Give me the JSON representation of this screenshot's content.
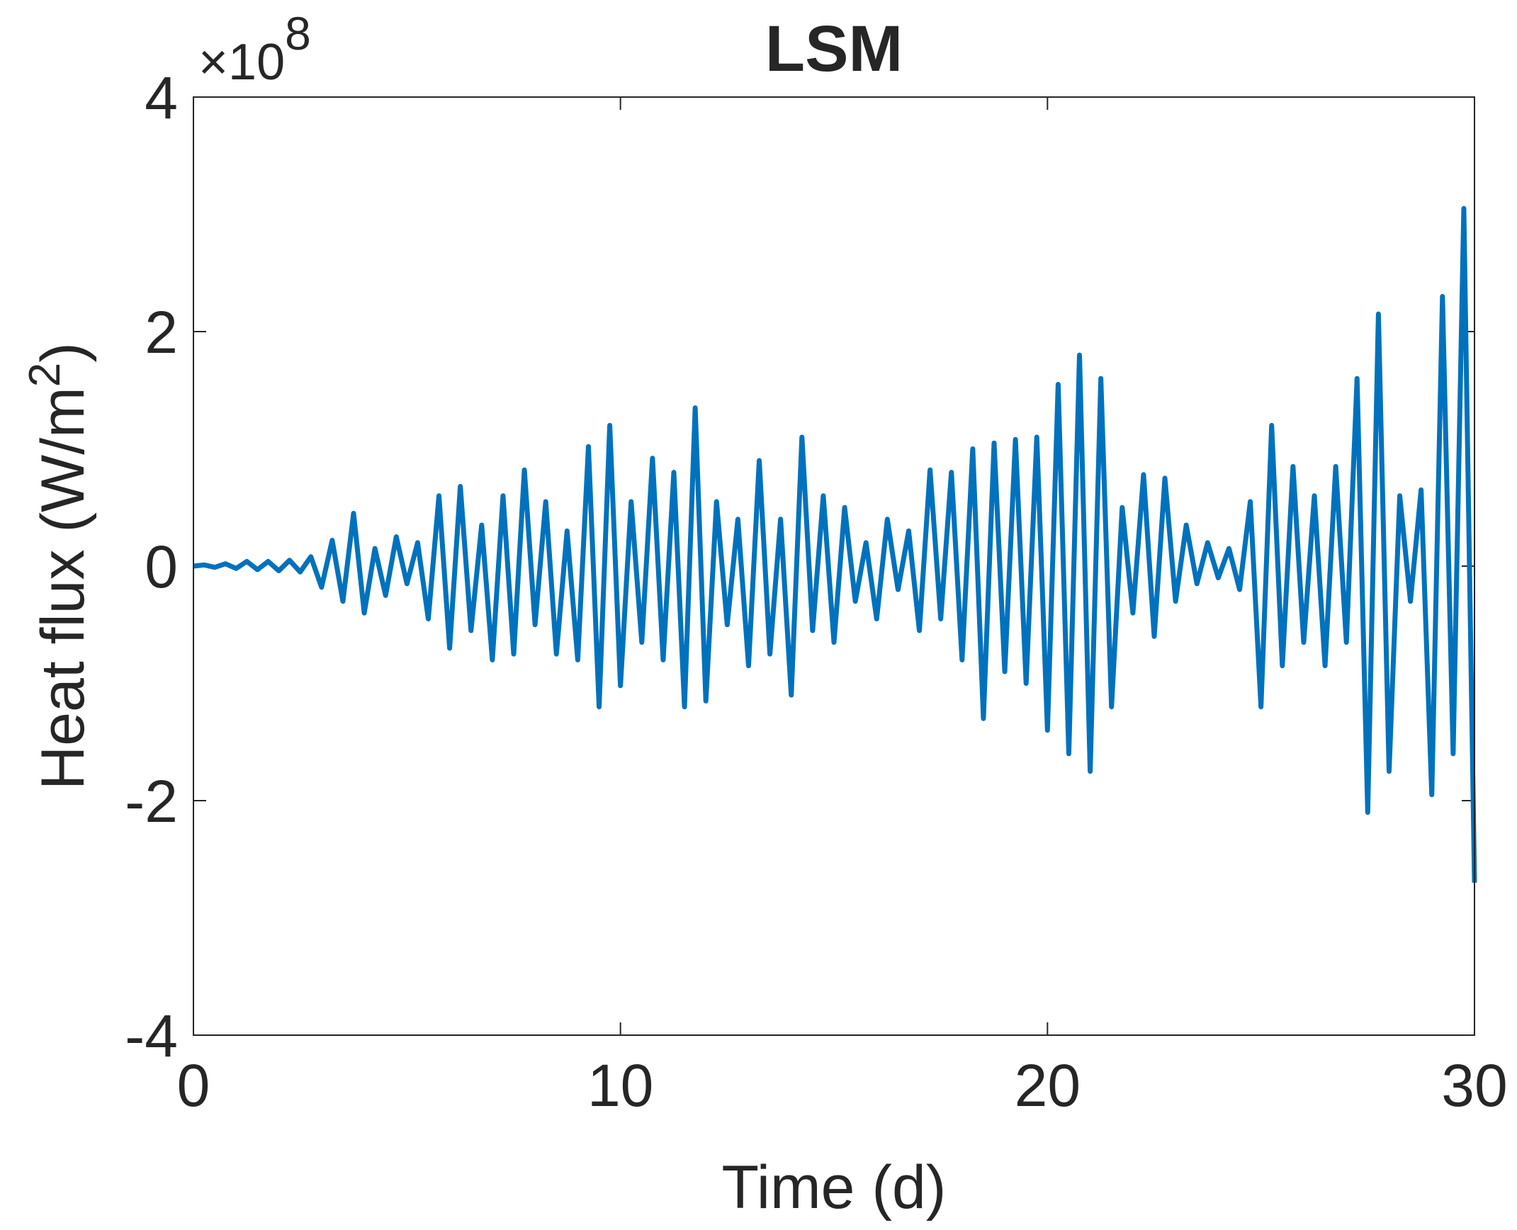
{
  "chart_data": {
    "type": "line",
    "title": "LSM",
    "xlabel": "Time (d)",
    "ylabel": [
      "Heat flux (W/m",
      "2",
      ")"
    ],
    "y_multiplier": [
      "×10",
      "8"
    ],
    "x": [
      0,
      0.25,
      0.5,
      0.75,
      1,
      1.25,
      1.5,
      1.75,
      2,
      2.25,
      2.5,
      2.75,
      3,
      3.25,
      3.5,
      3.75,
      4,
      4.25,
      4.5,
      4.75,
      5,
      5.25,
      5.5,
      5.75,
      6,
      6.25,
      6.5,
      6.75,
      7,
      7.25,
      7.5,
      7.75,
      8,
      8.25,
      8.5,
      8.75,
      9,
      9.25,
      9.5,
      9.75,
      10,
      10.25,
      10.5,
      10.75,
      11,
      11.25,
      11.5,
      11.75,
      12,
      12.25,
      12.5,
      12.75,
      13,
      13.25,
      13.5,
      13.75,
      14,
      14.25,
      14.5,
      14.75,
      15,
      15.25,
      15.5,
      15.75,
      16,
      16.25,
      16.5,
      16.75,
      17,
      17.25,
      17.5,
      17.75,
      18,
      18.25,
      18.5,
      18.75,
      19,
      19.25,
      19.5,
      19.75,
      20,
      20.25,
      20.5,
      20.75,
      21,
      21.25,
      21.5,
      21.75,
      22,
      22.25,
      22.5,
      22.75,
      23,
      23.25,
      23.5,
      23.75,
      24,
      24.25,
      24.5,
      24.75,
      25,
      25.25,
      25.5,
      25.75,
      26,
      26.25,
      26.5,
      26.75,
      27,
      27.25,
      27.5,
      27.75,
      28,
      28.25,
      28.5,
      28.75,
      29,
      29.25,
      29.5,
      29.75,
      30
    ],
    "series": [
      {
        "color": "#0072bd",
        "values": [
          0,
          0.01,
          -0.01,
          0.02,
          -0.02,
          0.04,
          -0.03,
          0.04,
          -0.04,
          0.05,
          -0.05,
          0.08,
          -0.18,
          0.22,
          -0.3,
          0.45,
          -0.4,
          0.15,
          -0.25,
          0.25,
          -0.15,
          0.2,
          -0.45,
          0.6,
          -0.7,
          0.68,
          -0.55,
          0.35,
          -0.8,
          0.6,
          -0.75,
          0.82,
          -0.5,
          0.55,
          -0.75,
          0.3,
          -0.8,
          1.02,
          -1.2,
          1.2,
          -1.02,
          0.55,
          -0.65,
          0.92,
          -0.8,
          0.8,
          -1.2,
          1.35,
          -1.15,
          0.55,
          -0.5,
          0.4,
          -0.85,
          0.9,
          -0.75,
          0.4,
          -1.1,
          1.1,
          -0.55,
          0.6,
          -0.65,
          0.5,
          -0.3,
          0.2,
          -0.45,
          0.4,
          -0.2,
          0.3,
          -0.55,
          0.82,
          -0.45,
          0.8,
          -0.8,
          1.0,
          -1.3,
          1.05,
          -0.9,
          1.08,
          -1.0,
          1.1,
          -1.4,
          1.55,
          -1.6,
          1.8,
          -1.75,
          1.6,
          -1.2,
          0.5,
          -0.4,
          0.78,
          -0.6,
          0.75,
          -0.3,
          0.35,
          -0.15,
          0.2,
          -0.1,
          0.15,
          -0.2,
          0.55,
          -1.2,
          1.2,
          -0.85,
          0.85,
          -0.65,
          0.6,
          -0.85,
          0.85,
          -0.65,
          1.6,
          -2.1,
          2.15,
          -1.75,
          0.6,
          -0.3,
          0.65,
          -1.95,
          2.3,
          -1.6,
          3.05,
          -2.7
        ]
      }
    ],
    "xlim": [
      0,
      30
    ],
    "xticks": [
      0,
      10,
      20,
      30
    ],
    "ylim": [
      -4,
      4
    ],
    "yticks": [
      -4,
      -2,
      0,
      2,
      4
    ],
    "grid": false
  }
}
